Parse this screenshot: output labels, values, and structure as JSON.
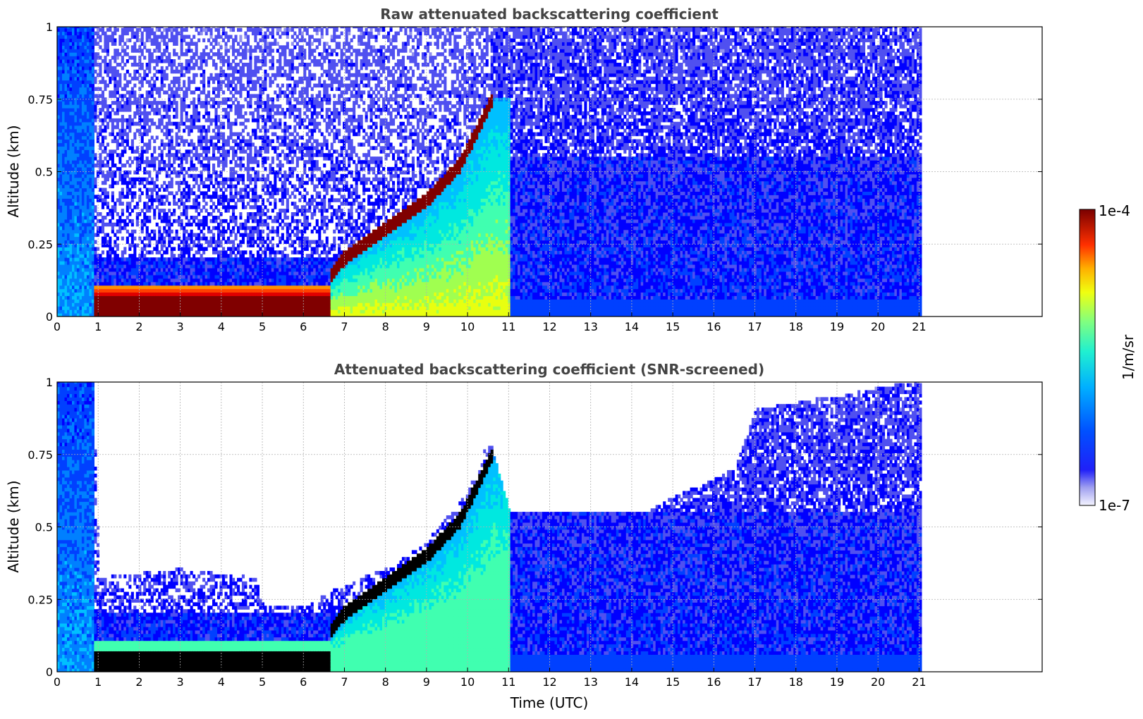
{
  "chart_data": [
    {
      "type": "heatmap",
      "title": "Raw attenuated backscattering coefficient",
      "xlabel": "",
      "ylabel": "Altitude (km)",
      "xlim": [
        0,
        24
      ],
      "ylim": [
        0,
        1
      ],
      "x_ticks": [
        "0",
        "1",
        "2",
        "3",
        "4",
        "5",
        "6",
        "7",
        "8",
        "9",
        "10",
        "11",
        "12",
        "13",
        "14",
        "15",
        "16",
        "17",
        "18",
        "19",
        "20",
        "21"
      ],
      "y_ticks": [
        "0",
        "0.25",
        "0.5",
        "0.75",
        "1"
      ],
      "grid": true,
      "data_end_time": 21,
      "features": {
        "boundary_layer_top_km": [
          {
            "t": 0.85,
            "h": 0.07
          },
          {
            "t": 2,
            "h": 0.07
          },
          {
            "t": 4,
            "h": 0.08
          },
          {
            "t": 5,
            "h": 0.1
          },
          {
            "t": 6,
            "h": 0.12
          },
          {
            "t": 6.6,
            "h": 0.13
          },
          {
            "t": 7,
            "h": 0.2
          },
          {
            "t": 8,
            "h": 0.3
          },
          {
            "t": 9,
            "h": 0.4
          },
          {
            "t": 9.8,
            "h": 0.52
          },
          {
            "t": 10.6,
            "h": 0.75
          }
        ],
        "surface_layer_top_km": 0.07,
        "surface_layer_start_time": 0.85,
        "high_signal_end_time": 6.6
      }
    },
    {
      "type": "heatmap",
      "title": "Attenuated backscattering coefficient (SNR-screened)",
      "xlabel": "Time (UTC)",
      "ylabel": "Altitude (km)",
      "xlim": [
        0,
        24
      ],
      "ylim": [
        0,
        1
      ],
      "x_ticks": [
        "0",
        "1",
        "2",
        "3",
        "4",
        "5",
        "6",
        "7",
        "8",
        "9",
        "10",
        "11",
        "12",
        "13",
        "14",
        "15",
        "16",
        "17",
        "18",
        "19",
        "20",
        "21"
      ],
      "y_ticks": [
        "0",
        "0.25",
        "0.5",
        "0.75",
        "1"
      ],
      "grid": true,
      "data_end_time": 21,
      "features": {
        "screened_top_km": [
          {
            "t": 0,
            "h": 1.0
          },
          {
            "t": 0.85,
            "h": 1.0
          },
          {
            "t": 1.0,
            "h": 0.32
          },
          {
            "t": 3,
            "h": 0.35
          },
          {
            "t": 4.8,
            "h": 0.32
          },
          {
            "t": 5,
            "h": 0.22
          },
          {
            "t": 6,
            "h": 0.22
          },
          {
            "t": 7,
            "h": 0.3
          },
          {
            "t": 8,
            "h": 0.35
          },
          {
            "t": 9,
            "h": 0.45
          },
          {
            "t": 9.9,
            "h": 0.6
          },
          {
            "t": 10.5,
            "h": 0.8
          },
          {
            "t": 11,
            "h": 0.55
          },
          {
            "t": 14.3,
            "h": 0.55
          },
          {
            "t": 16.5,
            "h": 0.7
          },
          {
            "t": 17,
            "h": 0.9
          },
          {
            "t": 21,
            "h": 1.0
          }
        ]
      }
    }
  ],
  "colorbar": {
    "min_label": "1e-7",
    "max_label": "1e-4",
    "label": "1/m/sr",
    "scale": "log",
    "colors": [
      "#eeeeff",
      "#c8c8f4",
      "#9090ee",
      "#5050f0",
      "#0000ff",
      "#0040ff",
      "#0080ff",
      "#00c0ff",
      "#00e8e0",
      "#40ffb0",
      "#a0ff50",
      "#e8ff10",
      "#ffd000",
      "#ff9000",
      "#ff4000",
      "#e00000",
      "#800000"
    ]
  }
}
